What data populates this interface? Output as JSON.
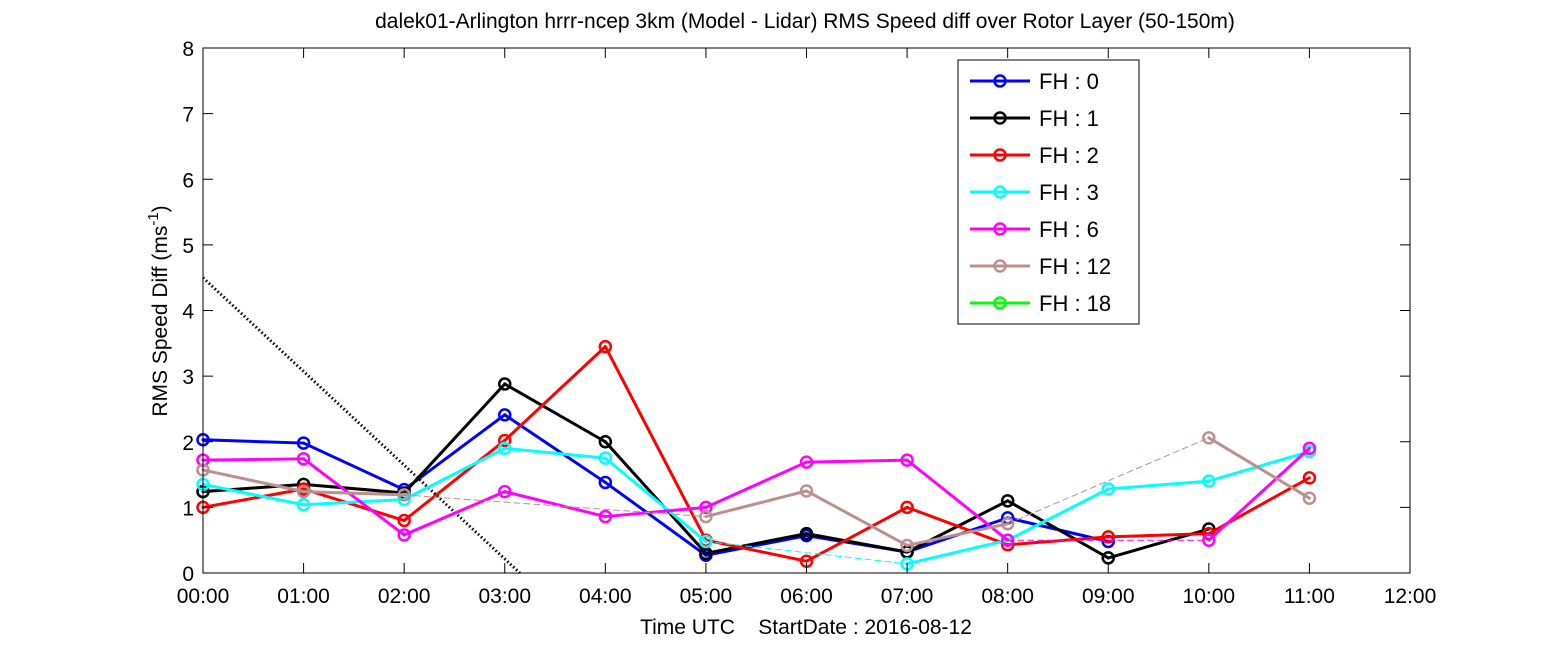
{
  "chart_data": {
    "type": "line",
    "title": "dalek01-Arlington hrrr-ncep 3km (Model - Lidar) RMS Speed diff over Rotor Layer (50-150m)",
    "xlabel": "Time UTC    StartDate : 2016-08-12",
    "ylabel": "RMS Speed Diff (ms",
    "ylabel_sup": "-1",
    "ylabel_close": ")",
    "xlim": [
      0,
      12
    ],
    "ylim": [
      0,
      8
    ],
    "x_ticks": [
      0,
      1,
      2,
      3,
      4,
      5,
      6,
      7,
      8,
      9,
      10,
      11,
      12
    ],
    "x_tick_labels": [
      "00:00",
      "01:00",
      "02:00",
      "03:00",
      "04:00",
      "05:00",
      "06:00",
      "07:00",
      "08:00",
      "09:00",
      "10:00",
      "11:00",
      "12:00"
    ],
    "y_ticks": [
      0,
      1,
      2,
      3,
      4,
      5,
      6,
      7,
      8
    ],
    "y_tick_labels": [
      "0",
      "1",
      "2",
      "3",
      "4",
      "5",
      "6",
      "7",
      "8"
    ],
    "grid": false,
    "legend_position": "top-right",
    "series": [
      {
        "name": "FH : 0",
        "color": "#0000ff",
        "x": [
          0,
          1,
          2,
          3,
          4,
          5,
          6,
          7,
          8,
          9
        ],
        "y": [
          2.03,
          1.98,
          1.27,
          2.41,
          1.38,
          0.27,
          0.57,
          0.32,
          0.84,
          0.48
        ]
      },
      {
        "name": "FH : 1",
        "color": "#000000",
        "x": [
          0,
          1,
          2,
          3,
          4,
          5,
          6,
          7,
          8,
          9,
          10
        ],
        "y": [
          1.24,
          1.35,
          1.22,
          2.88,
          2.0,
          0.3,
          0.6,
          0.32,
          1.1,
          0.23,
          0.67
        ]
      },
      {
        "name": "FH : 2",
        "color": "#ff0000",
        "x": [
          0,
          1,
          2,
          3,
          4,
          5,
          6,
          7,
          8,
          9,
          10,
          11
        ],
        "y": [
          1.0,
          1.28,
          0.8,
          2.02,
          3.45,
          0.5,
          0.18,
          1.0,
          0.43,
          0.55,
          0.6,
          1.45
        ]
      },
      {
        "name": "FH : 3",
        "color": "#00ffff",
        "x": [
          0,
          1,
          2,
          3,
          4,
          5,
          7,
          8,
          9,
          10,
          11
        ],
        "y": [
          1.35,
          1.04,
          1.12,
          1.9,
          1.75,
          0.48,
          0.14,
          0.5,
          1.28,
          1.4,
          1.85
        ]
      },
      {
        "name": "FH : 6",
        "color": "#ff00ff",
        "x": [
          0,
          1,
          2,
          3,
          4,
          5,
          6,
          7,
          8,
          10,
          11
        ],
        "y": [
          1.72,
          1.74,
          0.58,
          1.24,
          0.86,
          1.0,
          1.69,
          1.72,
          0.5,
          0.5,
          1.9
        ]
      },
      {
        "name": "FH : 12",
        "color": "#bc8f8f",
        "x": [
          0,
          1,
          2,
          5,
          6,
          7,
          8,
          10,
          11
        ],
        "y": [
          1.57,
          1.24,
          1.19,
          0.86,
          1.25,
          0.42,
          0.75,
          2.06,
          1.14
        ]
      },
      {
        "name": "FH : 18",
        "color": "#00ff00",
        "x": [],
        "y": []
      }
    ],
    "reference_line": {
      "color": "#000000",
      "style": "dotted",
      "x": [
        0,
        3.15
      ],
      "y": [
        4.5,
        0
      ]
    }
  }
}
